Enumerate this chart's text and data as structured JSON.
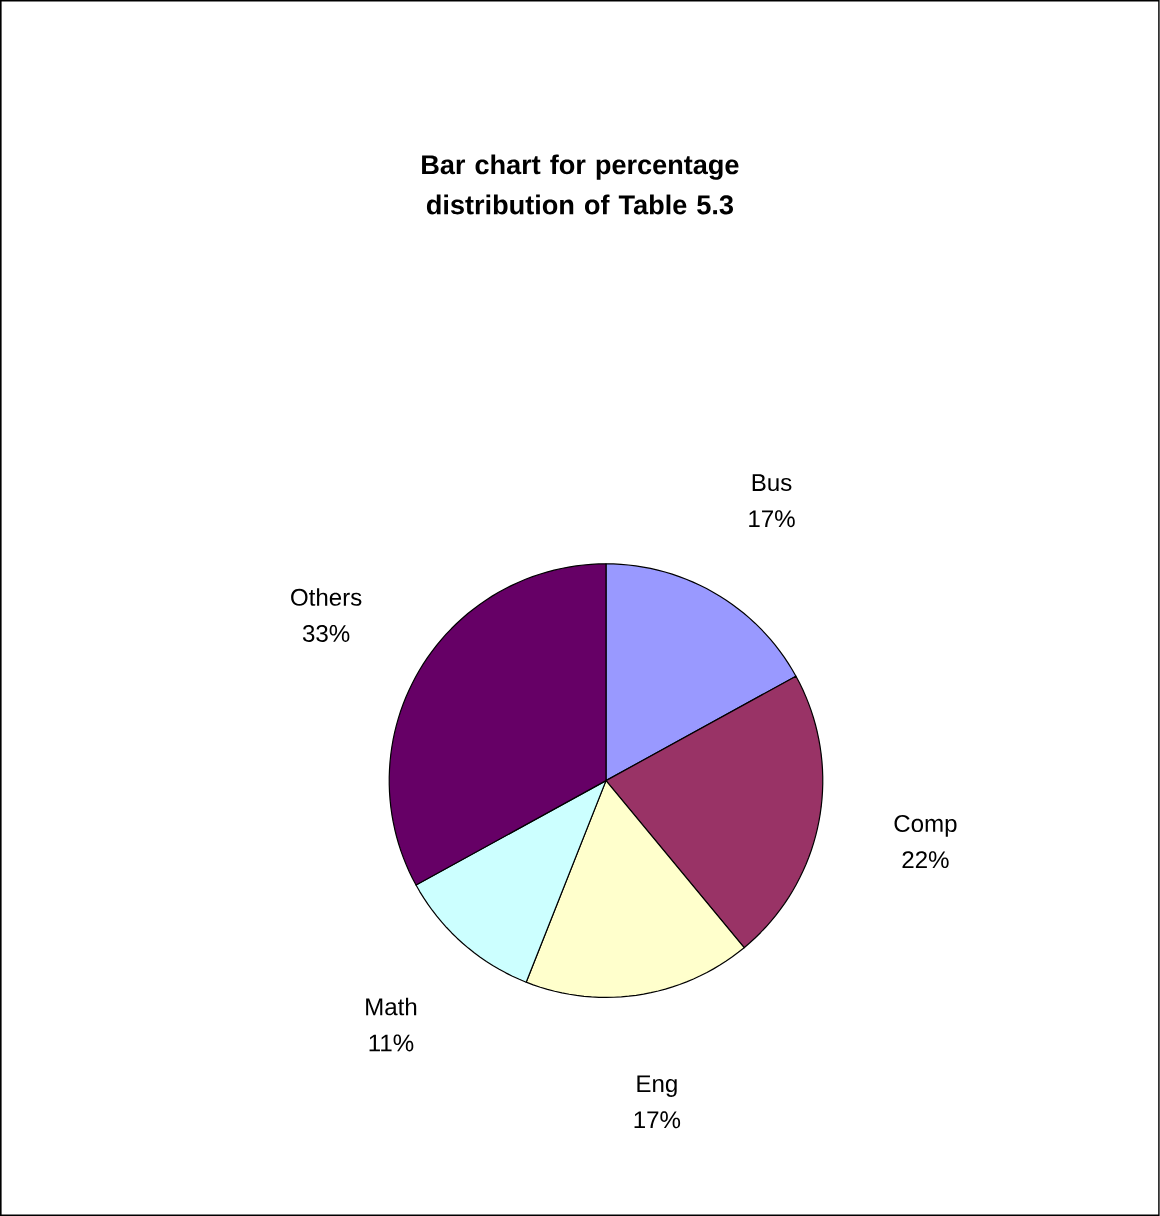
{
  "chart_data": {
    "type": "pie",
    "title": "Bar chart for percentage distribution of Table 5.3",
    "categories": [
      "Bus",
      "Comp",
      "Eng",
      "Math",
      "Others"
    ],
    "values": [
      17,
      22,
      17,
      11,
      33
    ],
    "value_labels": [
      "17%",
      "22%",
      "17%",
      "11%",
      "33%"
    ],
    "colors": [
      "#9999ff",
      "#993366",
      "#ffffcc",
      "#ccffff",
      "#660066"
    ]
  }
}
